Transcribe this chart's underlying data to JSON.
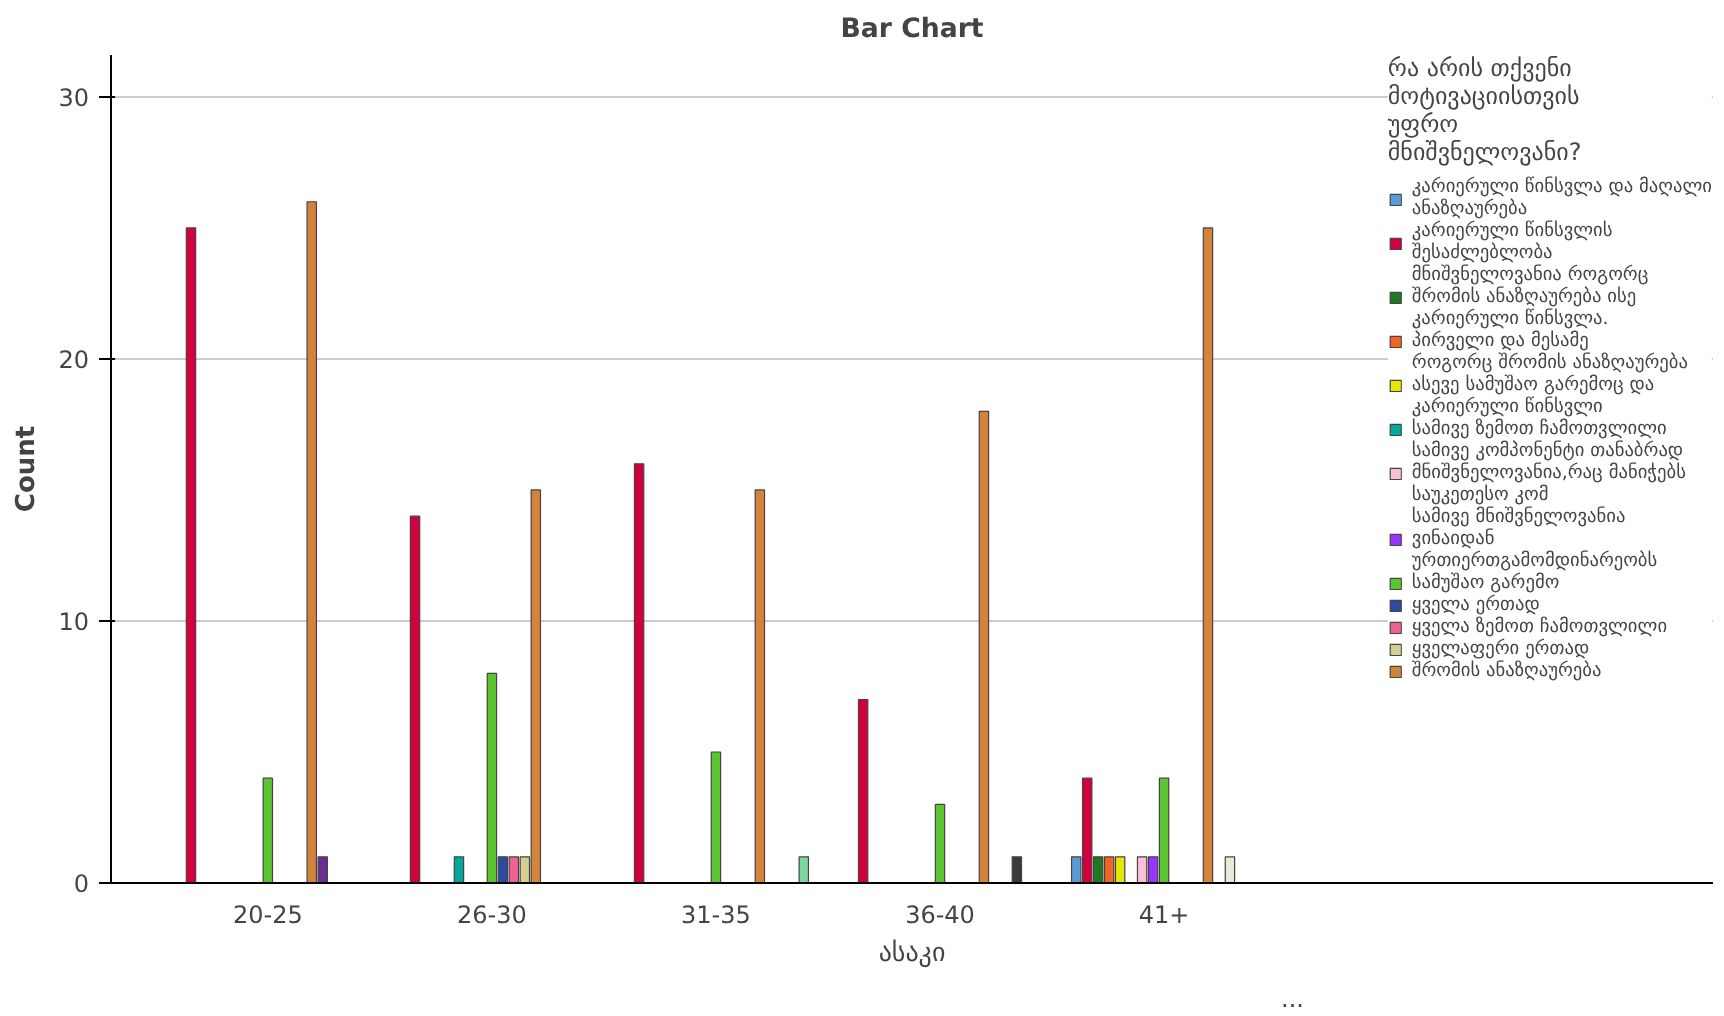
{
  "chart_data": {
    "type": "bar",
    "title": "Bar Chart",
    "xlabel": "ასაკი",
    "ylabel": "Count",
    "legend_title": "რა არის თქვენი მოტივაციისთვის უფრო მნიშვნელოვანი?",
    "categories": [
      "20-25",
      "26-30",
      "31-35",
      "36-40",
      "41+"
    ],
    "ylim": [
      0,
      31.6
    ],
    "yticks": [
      0,
      10,
      20,
      30
    ],
    "grid": "y",
    "legend": "right",
    "annotations": [
      "..."
    ],
    "series": [
      {
        "name": "კარიერული წინსვლა და მაღალი ანაზღაურება",
        "color": "#5b9bd5",
        "values": [
          null,
          null,
          null,
          null,
          1
        ]
      },
      {
        "name": "კარიერული წინსვლის შესაძლებლობა",
        "color": "#d2003c",
        "values": [
          25,
          14,
          16,
          7,
          4
        ]
      },
      {
        "name": "მნიშვნელოვანია როგორც შრომის ანაზღაურება ისე კარიერული წინსვლა.",
        "color": "#1e7a1e",
        "values": [
          null,
          null,
          null,
          null,
          1
        ]
      },
      {
        "name": "პირველი და მესამე",
        "color": "#f26522",
        "values": [
          null,
          null,
          null,
          null,
          1
        ]
      },
      {
        "name": "როგორც შრომის ანაზღაურება ასევე სამუშაო გარემოც და კარიერული წინსვლი",
        "color": "#e6e600",
        "values": [
          null,
          null,
          null,
          null,
          1
        ]
      },
      {
        "name": "სამივე ზემოთ ჩამოთვლილი",
        "color": "#00a99d",
        "values": [
          null,
          1,
          null,
          null,
          null
        ]
      },
      {
        "name": "სამივე კომპონენტი თანაბრად მნიშვნელოვანია,რაც მანიჭებს საუკეთესო კომ",
        "color": "#f9c0d8",
        "values": [
          null,
          null,
          null,
          null,
          1
        ]
      },
      {
        "name": "სამივე მნიშვნელოვანია ვინაიდან ურთიერთგამომდინარეობს",
        "color": "#9933ff",
        "values": [
          null,
          null,
          null,
          null,
          1
        ]
      },
      {
        "name": "სამუშაო გარემო",
        "color": "#5cc62e",
        "values": [
          4,
          8,
          5,
          3,
          4
        ]
      },
      {
        "name": "ყველა ერთად",
        "color": "#2b4aa0",
        "values": [
          null,
          1,
          null,
          null,
          null
        ]
      },
      {
        "name": "ყველა ზემოთ ჩამოთვლილი",
        "color": "#f06292",
        "values": [
          null,
          1,
          null,
          null,
          null
        ]
      },
      {
        "name": "ყველაფერი ერთად",
        "color": "#d4cf8f",
        "values": [
          null,
          1,
          null,
          null,
          null
        ]
      },
      {
        "name": "შრომის ანაზღაურება",
        "color": "#d4843a",
        "values": [
          26,
          15,
          15,
          18,
          25
        ]
      },
      {
        "color": "#6b2d8f",
        "values": [
          1,
          null,
          null,
          null,
          null
        ]
      },
      {
        "color": "#ece9d8",
        "values": [
          null,
          null,
          null,
          null,
          1
        ]
      },
      {
        "color": "#3a3a3a",
        "values": [
          null,
          null,
          null,
          1,
          null
        ]
      },
      {
        "color": "#7ed6a0",
        "values": [
          null,
          null,
          1,
          null,
          null
        ]
      }
    ]
  }
}
